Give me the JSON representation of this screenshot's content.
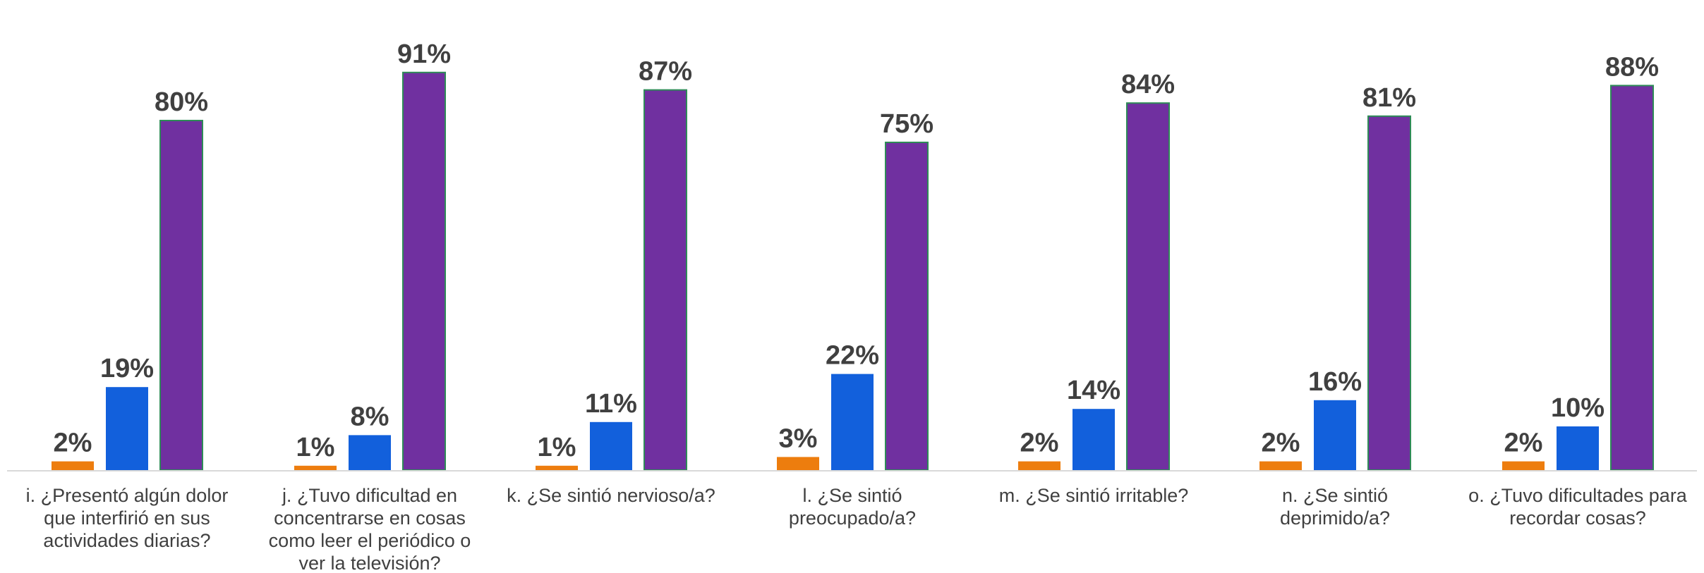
{
  "chart_data": {
    "type": "bar",
    "title": "",
    "xlabel": "",
    "ylabel": "",
    "ylim": [
      0,
      100
    ],
    "grid": false,
    "legend": "none",
    "categories": [
      "i. ¿Presentó algún dolor que interfirió en sus actividades diarias?",
      "j. ¿Tuvo dificultad en concentrarse en cosas como leer el periódico o ver la televisión?",
      "k. ¿Se sintió nervioso/a?",
      "l. ¿Se sintió preocupado/a?",
      "m. ¿Se sintió irritable?",
      "n. ¿Se sintió deprimido/a?",
      "o. ¿Tuvo dificultades para recordar cosas?"
    ],
    "category_lines": [
      [
        "i. ¿Presentó algún dolor",
        "que interfirió en sus",
        "actividades diarias?"
      ],
      [
        "j. ¿Tuvo dificultad en",
        "concentrarse en cosas",
        "como leer el periódico o",
        "ver la televisión?"
      ],
      [
        "k. ¿Se sintió nervioso/a?"
      ],
      [
        "l. ¿Se sintió",
        "preocupado/a?"
      ],
      [
        "m. ¿Se sintió irritable?"
      ],
      [
        "n. ¿Se sintió",
        "deprimido/a?"
      ],
      [
        "o. ¿Tuvo dificultades para",
        "recordar cosas?"
      ]
    ],
    "series": [
      {
        "color": "#ED7D0E",
        "values": [
          2,
          1,
          1,
          3,
          2,
          2,
          2
        ],
        "labels": [
          "2%",
          "1%",
          "1%",
          "3%",
          "2%",
          "2%",
          "2%"
        ]
      },
      {
        "color": "#1260DC",
        "values": [
          19,
          8,
          11,
          22,
          14,
          16,
          10
        ],
        "labels": [
          "19%",
          "8%",
          "11%",
          "22%",
          "14%",
          "16%",
          "10%"
        ]
      },
      {
        "color": "#7030A0",
        "border": "#2E8B57",
        "values": [
          80,
          91,
          87,
          75,
          84,
          81,
          88
        ],
        "labels": [
          "80%",
          "91%",
          "87%",
          "75%",
          "84%",
          "81%",
          "88%"
        ]
      }
    ],
    "label_color": "#404040",
    "axis_color": "#D9D9D9"
  }
}
